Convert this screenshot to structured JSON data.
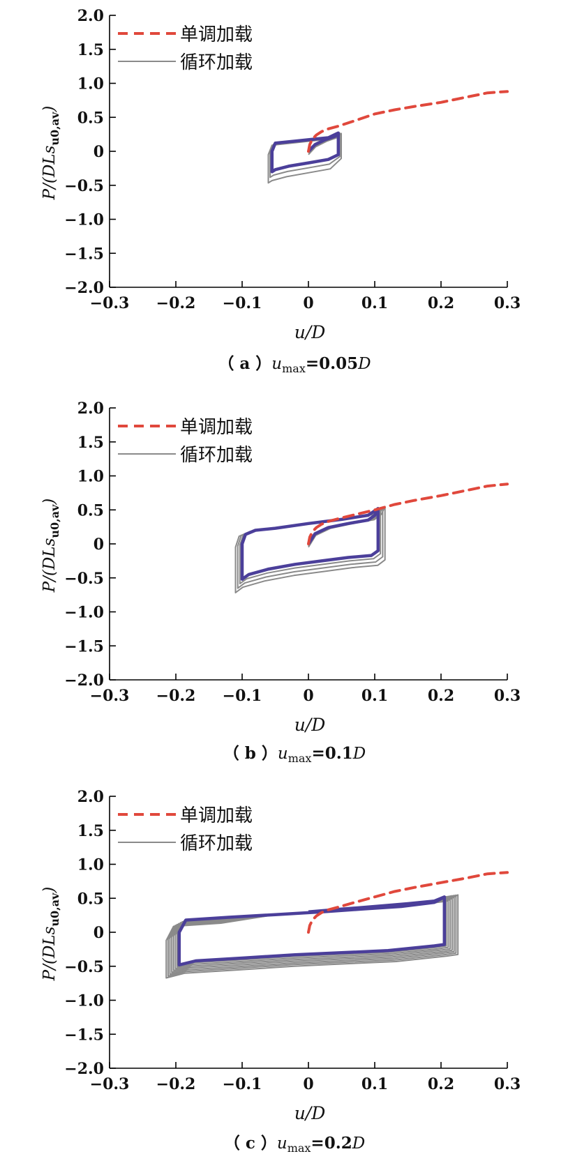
{
  "chart_data": [
    {
      "type": "line",
      "panel": "a",
      "caption": {
        "prefix": "（ a ）",
        "var": "u",
        "sub": "max",
        "eq": "=0.05",
        "unit": "D"
      },
      "ylabel": "P/(DLs",
      "ylabel_sub": "u0,av",
      "ylabel_tail": ")",
      "xlabel": "u/D",
      "xlim": [
        -0.3,
        0.3
      ],
      "ylim": [
        -2.0,
        2.0
      ],
      "x_ticks": [
        "−0.3",
        "−0.2",
        "−0.1",
        "0",
        "0.1",
        "0.2",
        "0.3"
      ],
      "y_ticks": [
        "2.0",
        "1.5",
        "1.0",
        "0.5",
        "0",
        "−0.5",
        "−1.0",
        "−1.5",
        "−2.0"
      ],
      "legend": [
        "单调加载",
        "循环加载"
      ],
      "colors": {
        "monotonic": "#e0483c",
        "cyclic": "#8a8a8a",
        "highlight": "#4b3f9a"
      },
      "monotonic": {
        "x": [
          0,
          0.002,
          0.006,
          0.012,
          0.02,
          0.03,
          0.045,
          0.07,
          0.1,
          0.13,
          0.16,
          0.2,
          0.24,
          0.27,
          0.3
        ],
        "y": [
          0,
          0.1,
          0.18,
          0.24,
          0.29,
          0.33,
          0.37,
          0.45,
          0.55,
          0.61,
          0.66,
          0.72,
          0.8,
          0.86,
          0.88
        ]
      },
      "cyclic": {
        "umax": 0.05,
        "cycles": 3,
        "loop": {
          "x": [
            0,
            0.01,
            0.025,
            0.04,
            0.045,
            0.045,
            0.03,
            0.0,
            -0.03,
            -0.05,
            -0.055,
            -0.055,
            -0.05,
            -0.02,
            0.0,
            0.03,
            0.045
          ],
          "y": [
            0,
            0.1,
            0.17,
            0.22,
            0.27,
            -0.05,
            -0.12,
            -0.17,
            -0.22,
            -0.27,
            -0.3,
            0.0,
            0.12,
            0.15,
            0.17,
            0.2,
            0.27
          ]
        }
      }
    },
    {
      "type": "line",
      "panel": "b",
      "caption": {
        "prefix": "（ b ）",
        "var": "u",
        "sub": "max",
        "eq": "=0.1",
        "unit": "D"
      },
      "ylabel": "P/(DLs",
      "ylabel_sub": "u0,av",
      "ylabel_tail": ")",
      "xlabel": "u/D",
      "xlim": [
        -0.3,
        0.3
      ],
      "ylim": [
        -2.0,
        2.0
      ],
      "x_ticks": [
        "−0.3",
        "−0.2",
        "−0.1",
        "0",
        "0.1",
        "0.2",
        "0.3"
      ],
      "y_ticks": [
        "2.0",
        "1.5",
        "1.0",
        "0.5",
        "0",
        "−0.5",
        "−1.0",
        "−1.5",
        "−2.0"
      ],
      "legend": [
        "单调加载",
        "循环加载"
      ],
      "colors": {
        "monotonic": "#e0483c",
        "cyclic": "#8a8a8a",
        "highlight": "#4b3f9a"
      },
      "monotonic": {
        "x": [
          0,
          0.002,
          0.006,
          0.012,
          0.02,
          0.03,
          0.045,
          0.07,
          0.1,
          0.13,
          0.16,
          0.2,
          0.24,
          0.27,
          0.3
        ],
        "y": [
          0,
          0.1,
          0.18,
          0.24,
          0.29,
          0.33,
          0.37,
          0.43,
          0.5,
          0.58,
          0.64,
          0.71,
          0.79,
          0.85,
          0.88
        ]
      },
      "cyclic": {
        "umax": 0.1,
        "cycles": 4,
        "loop": {
          "x": [
            0,
            0.01,
            0.03,
            0.06,
            0.09,
            0.1,
            0.105,
            0.105,
            0.095,
            0.06,
            0.02,
            -0.02,
            -0.06,
            -0.09,
            -0.1,
            -0.1,
            -0.095,
            -0.08,
            -0.05,
            0.0,
            0.05,
            0.09,
            0.105
          ],
          "y": [
            0,
            0.15,
            0.24,
            0.3,
            0.35,
            0.42,
            0.52,
            -0.1,
            -0.17,
            -0.2,
            -0.25,
            -0.3,
            -0.37,
            -0.45,
            -0.52,
            0.0,
            0.14,
            0.2,
            0.23,
            0.3,
            0.36,
            0.42,
            0.52
          ]
        }
      }
    },
    {
      "type": "line",
      "panel": "c",
      "caption": {
        "prefix": "（ c ）",
        "var": "u",
        "sub": "max",
        "eq": "=0.2",
        "unit": "D"
      },
      "ylabel": "P/(DLs",
      "ylabel_sub": "u0,av",
      "ylabel_tail": ")",
      "xlabel": "u/D",
      "xlim": [
        -0.3,
        0.3
      ],
      "ylim": [
        -2.0,
        2.0
      ],
      "x_ticks": [
        "−0.3",
        "−0.2",
        "−0.1",
        "0",
        "0.1",
        "0.2",
        "0.3"
      ],
      "y_ticks": [
        "2.0",
        "1.5",
        "1.0",
        "0.5",
        "0",
        "−0.5",
        "−1.0",
        "−1.5",
        "−2.0"
      ],
      "legend": [
        "单调加载",
        "循环加载"
      ],
      "colors": {
        "monotonic": "#e0483c",
        "cyclic": "#8a8a8a",
        "highlight": "#4b3f9a"
      },
      "monotonic": {
        "x": [
          0,
          0.002,
          0.006,
          0.012,
          0.02,
          0.03,
          0.045,
          0.07,
          0.1,
          0.13,
          0.16,
          0.2,
          0.24,
          0.27,
          0.3
        ],
        "y": [
          0,
          0.1,
          0.18,
          0.24,
          0.29,
          0.33,
          0.37,
          0.44,
          0.52,
          0.6,
          0.66,
          0.73,
          0.8,
          0.86,
          0.88
        ]
      },
      "cyclic": {
        "umax": 0.2,
        "cycles": 8,
        "loop": {
          "x": [
            0,
            0.05,
            0.1,
            0.15,
            0.19,
            0.205,
            0.205,
            0.19,
            0.12,
            0.05,
            -0.02,
            -0.1,
            -0.17,
            -0.195,
            -0.195,
            -0.185,
            -0.12,
            -0.05,
            0.02,
            0.08,
            0.14,
            0.19,
            0.205
          ],
          "y": [
            0.3,
            0.34,
            0.38,
            0.42,
            0.46,
            0.52,
            -0.18,
            -0.2,
            -0.27,
            -0.3,
            -0.33,
            -0.38,
            -0.42,
            -0.48,
            0.0,
            0.18,
            0.22,
            0.26,
            0.3,
            0.34,
            0.38,
            0.44,
            0.52
          ]
        }
      }
    }
  ]
}
